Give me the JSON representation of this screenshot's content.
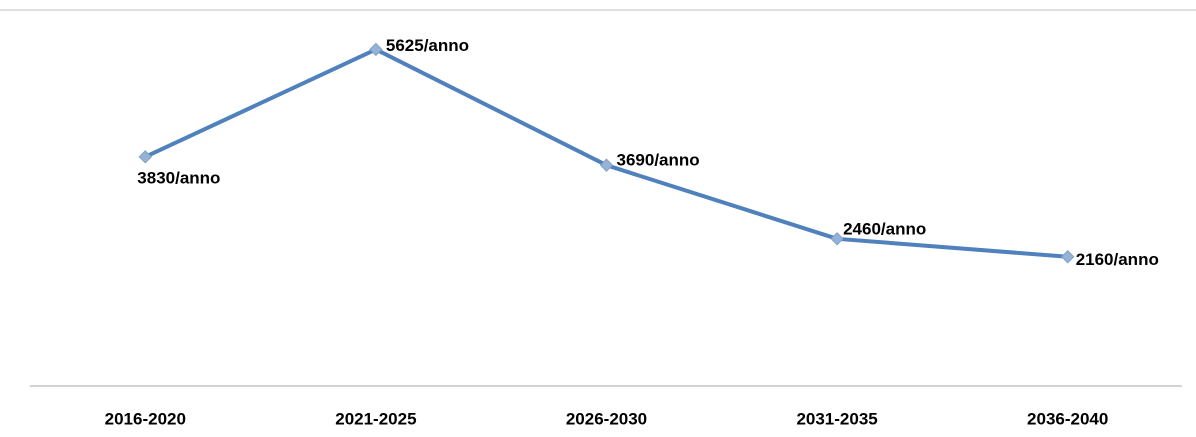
{
  "chart_data": {
    "type": "line",
    "categories": [
      "2016-2020",
      "2021-2025",
      "2026-2030",
      "2031-2035",
      "2036-2040"
    ],
    "values": [
      3830,
      5625,
      3690,
      2460,
      2160
    ],
    "value_labels": [
      "3830/anno",
      "5625/anno",
      "3690/anno",
      "2460/anno",
      "2160/anno"
    ],
    "color": "#4f81bd",
    "marker_color": "#95b3d7",
    "ylim": [
      0,
      6000
    ]
  }
}
